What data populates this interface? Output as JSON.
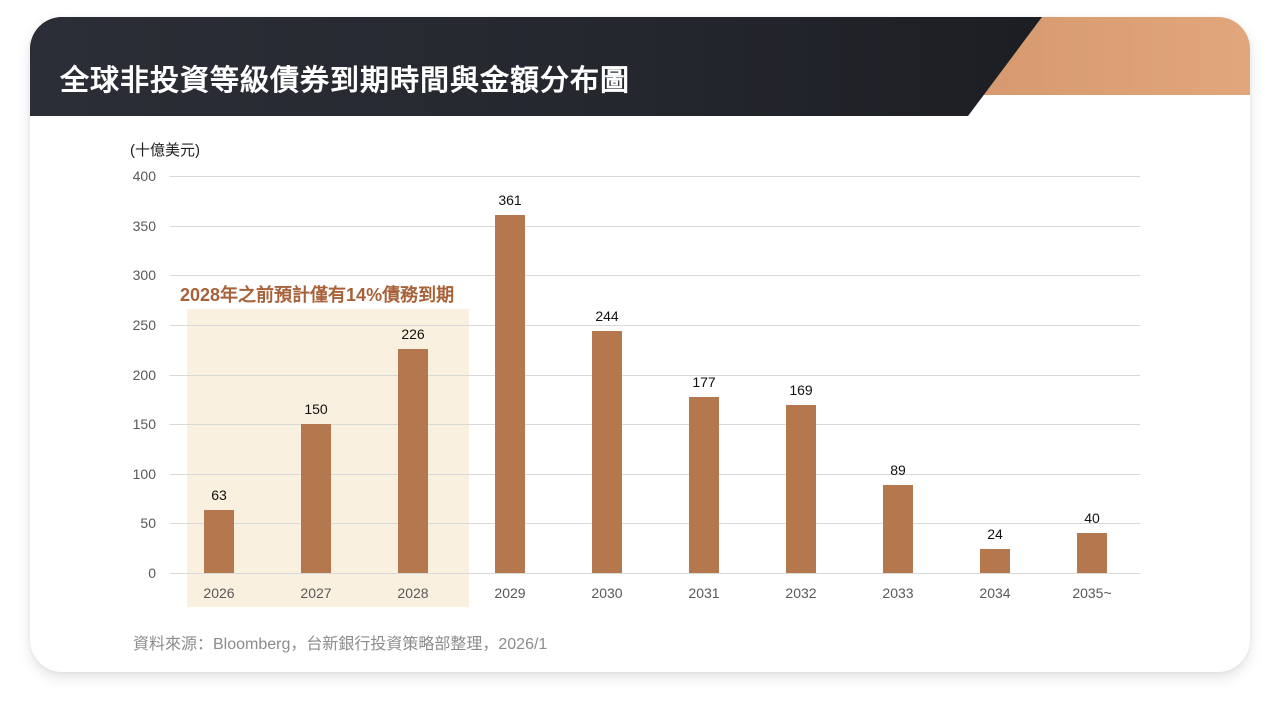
{
  "header": {
    "title": "全球非投資等級債券到期時間與金額分布圖",
    "colors": {
      "dark": "#24272e",
      "accent_start": "#b97a4f",
      "accent_end": "#e2a67c"
    }
  },
  "chart": {
    "unit_label": "(十億美元)",
    "highlight_note": "2028年之前預計僅有14%債務到期",
    "y_ticks": [
      "0",
      "50",
      "100",
      "150",
      "200",
      "250",
      "300",
      "350",
      "400"
    ],
    "bar_color": "#b5784e",
    "highlight_color": "#faf0df",
    "highlight_text_color": "#a8623a"
  },
  "source": {
    "text": "資料來源：Bloomberg，台新銀行投資策略部整理，2026/1"
  },
  "chart_data": {
    "type": "bar",
    "title": "全球非投資等級債券到期時間與金額分布圖",
    "xlabel": "",
    "ylabel": "(十億美元)",
    "categories": [
      "2026",
      "2027",
      "2028",
      "2029",
      "2030",
      "2031",
      "2032",
      "2033",
      "2034",
      "2035~"
    ],
    "values": [
      63,
      150,
      226,
      361,
      244,
      177,
      169,
      89,
      24,
      40
    ],
    "ylim": [
      0,
      400
    ],
    "yticks": [
      0,
      50,
      100,
      150,
      200,
      250,
      300,
      350,
      400
    ],
    "grid": true,
    "legend": null,
    "data_labels": true,
    "annotations": [
      {
        "text": "2028年之前預計僅有14%債務到期",
        "highlight_categories": [
          "2026",
          "2027",
          "2028"
        ]
      }
    ],
    "source": "資料來源：Bloomberg，台新銀行投資策略部整理，2026/1"
  }
}
